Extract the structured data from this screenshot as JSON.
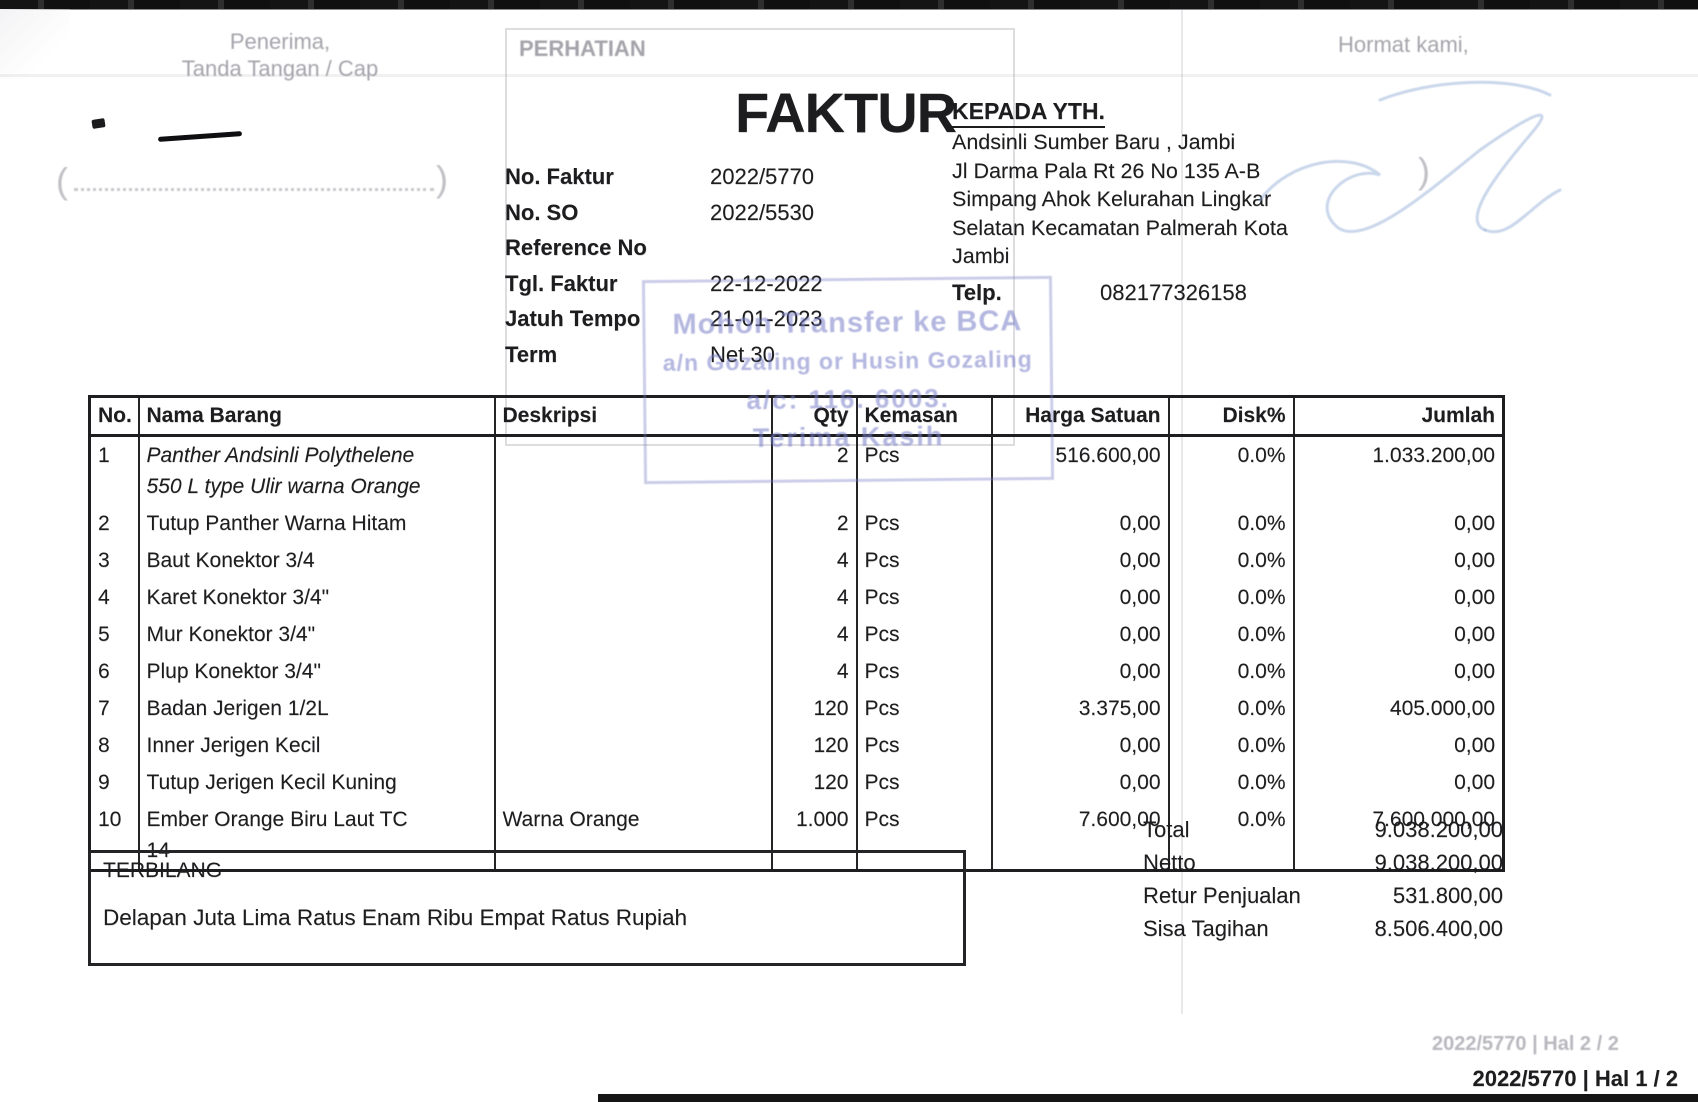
{
  "title": "FAKTUR",
  "ghosts": {
    "penerima_line1": "Penerima,",
    "penerima_line2": "Tanda Tangan / Cap",
    "perhatian": "PERHATIAN",
    "hormat_kami": "Hormat kami,",
    "footer_prev_page": "2022/5770 | Hal 2 / 2",
    "paren_left": "(",
    "paren_right": ")"
  },
  "meta": {
    "rows": [
      {
        "label": "No. Faktur",
        "value": "2022/5770"
      },
      {
        "label": "No. SO",
        "value": "2022/5530"
      },
      {
        "label": "Reference No",
        "value": ""
      },
      {
        "label": "Tgl. Faktur",
        "value": "22-12-2022"
      },
      {
        "label": "Jatuh Tempo",
        "value": "21-01-2023"
      },
      {
        "label": "Term",
        "value": "Net 30"
      }
    ]
  },
  "recipient": {
    "heading": "KEPADA YTH.",
    "lines": [
      "Andsinli Sumber Baru , Jambi",
      "Jl Darma Pala Rt 26 No 135 A-B",
      "Simpang Ahok Kelurahan Lingkar",
      "Selatan Kecamatan Palmerah Kota",
      "Jambi"
    ],
    "telp_label": "Telp.",
    "telp_value": "082177326158"
  },
  "stamp": {
    "lines": [
      "Mohon Transfer ke BCA",
      "a/n Gozaling or Husin Gozaling",
      "a/c: 116. 6003.",
      "Terima Kasih"
    ]
  },
  "table": {
    "columns": [
      "No.",
      "Nama Barang",
      "Deskripsi",
      "Qty",
      "Kemasan",
      "Harga Satuan",
      "Disk%",
      "Jumlah"
    ],
    "rows": [
      {
        "no": "1",
        "name": "Panther Andsinli Polythelene\n550 L type Ulir warna Orange",
        "italic": true,
        "desc": "",
        "qty": "2",
        "kemasan": "Pcs",
        "harga": "516.600,00",
        "disk": "0.0%",
        "jumlah": "1.033.200,00"
      },
      {
        "no": "2",
        "name": "Tutup Panther Warna Hitam",
        "italic": false,
        "desc": "",
        "qty": "2",
        "kemasan": "Pcs",
        "harga": "0,00",
        "disk": "0.0%",
        "jumlah": "0,00"
      },
      {
        "no": "3",
        "name": "Baut Konektor 3/4",
        "italic": false,
        "desc": "",
        "qty": "4",
        "kemasan": "Pcs",
        "harga": "0,00",
        "disk": "0.0%",
        "jumlah": "0,00"
      },
      {
        "no": "4",
        "name": "Karet Konektor 3/4\"",
        "italic": false,
        "desc": "",
        "qty": "4",
        "kemasan": "Pcs",
        "harga": "0,00",
        "disk": "0.0%",
        "jumlah": "0,00"
      },
      {
        "no": "5",
        "name": "Mur Konektor 3/4\"",
        "italic": false,
        "desc": "",
        "qty": "4",
        "kemasan": "Pcs",
        "harga": "0,00",
        "disk": "0.0%",
        "jumlah": "0,00"
      },
      {
        "no": "6",
        "name": "Plup Konektor 3/4\"",
        "italic": false,
        "desc": "",
        "qty": "4",
        "kemasan": "Pcs",
        "harga": "0,00",
        "disk": "0.0%",
        "jumlah": "0,00"
      },
      {
        "no": "7",
        "name": "Badan Jerigen 1/2L",
        "italic": false,
        "desc": "",
        "qty": "120",
        "kemasan": "Pcs",
        "harga": "3.375,00",
        "disk": "0.0%",
        "jumlah": "405.000,00"
      },
      {
        "no": "8",
        "name": "Inner Jerigen Kecil",
        "italic": false,
        "desc": "",
        "qty": "120",
        "kemasan": "Pcs",
        "harga": "0,00",
        "disk": "0.0%",
        "jumlah": "0,00"
      },
      {
        "no": "9",
        "name": "Tutup Jerigen Kecil Kuning",
        "italic": false,
        "desc": "",
        "qty": "120",
        "kemasan": "Pcs",
        "harga": "0,00",
        "disk": "0.0%",
        "jumlah": "0,00"
      },
      {
        "no": "10",
        "name": "Ember Orange Biru Laut  TC\n14",
        "italic": false,
        "desc": "Warna Orange",
        "qty": "1.000",
        "kemasan": "Pcs",
        "harga": "7.600,00",
        "disk": "0.0%",
        "jumlah": "7.600.000,00"
      }
    ]
  },
  "terbilang": {
    "heading": "TERBILANG",
    "text": "Delapan Juta Lima Ratus Enam Ribu Empat Ratus Rupiah"
  },
  "totals": {
    "rows": [
      {
        "label": "Total",
        "value": "9.038.200,00"
      },
      {
        "label": "Netto",
        "value": "9.038.200,00"
      },
      {
        "label": "Retur Penjualan",
        "value": "531.800,00"
      },
      {
        "label": "Sisa Tagihan",
        "value": "8.506.400,00"
      }
    ]
  },
  "footer": {
    "page_label": "2022/5770 | Hal 1 / 2"
  },
  "colors": {
    "ink": "#1d1d1f",
    "paper": "#e9e9ec",
    "stamp_blue": "#767cc6",
    "ghost_gray": "#8a8a94",
    "signature_blue": "#9db8dd"
  }
}
